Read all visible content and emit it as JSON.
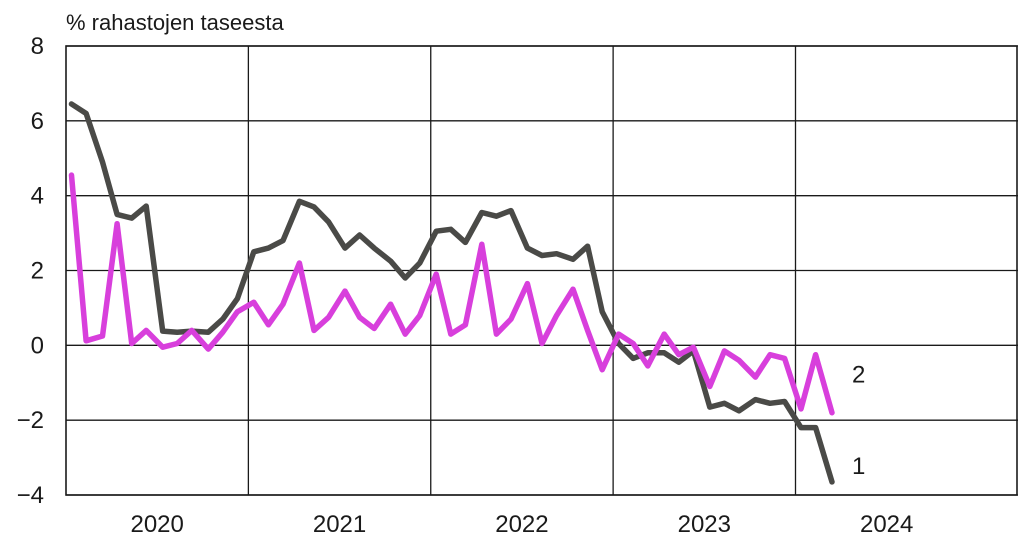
{
  "chart_data": {
    "type": "line",
    "unit_label": "% rahastojen taseesta",
    "ylim": [
      -4,
      8
    ],
    "yticks": [
      -4,
      -2,
      0,
      2,
      4,
      6,
      8
    ],
    "ytick_labels": [
      "−4",
      "−2",
      "0",
      "2",
      "4",
      "6",
      "8"
    ],
    "xlim": [
      2019.5,
      2024.72
    ],
    "year_boundaries": [
      2020.5,
      2021.5,
      2022.5,
      2023.5
    ],
    "xtick_labels": [
      {
        "label": "2020",
        "center": 2020.0
      },
      {
        "label": "2021",
        "center": 2021.0
      },
      {
        "label": "2022",
        "center": 2022.0
      },
      {
        "label": "2023",
        "center": 2023.0
      },
      {
        "label": "2024",
        "center": 2024.0
      }
    ],
    "grid": true,
    "series": [
      {
        "name": "1",
        "color": "#4a4a47",
        "points": [
          [
            2019.53,
            6.45
          ],
          [
            2019.61,
            6.2
          ],
          [
            2019.7,
            4.9
          ],
          [
            2019.78,
            3.5
          ],
          [
            2019.86,
            3.4
          ],
          [
            2019.94,
            3.72
          ],
          [
            2020.03,
            0.38
          ],
          [
            2020.11,
            0.35
          ],
          [
            2020.19,
            0.38
          ],
          [
            2020.28,
            0.35
          ],
          [
            2020.36,
            0.7
          ],
          [
            2020.44,
            1.25
          ],
          [
            2020.53,
            2.5
          ],
          [
            2020.61,
            2.6
          ],
          [
            2020.69,
            2.8
          ],
          [
            2020.78,
            3.85
          ],
          [
            2020.86,
            3.7
          ],
          [
            2020.94,
            3.3
          ],
          [
            2021.03,
            2.6
          ],
          [
            2021.11,
            2.95
          ],
          [
            2021.19,
            2.6
          ],
          [
            2021.28,
            2.25
          ],
          [
            2021.36,
            1.8
          ],
          [
            2021.44,
            2.2
          ],
          [
            2021.53,
            3.05
          ],
          [
            2021.61,
            3.1
          ],
          [
            2021.69,
            2.75
          ],
          [
            2021.78,
            3.55
          ],
          [
            2021.86,
            3.45
          ],
          [
            2021.94,
            3.6
          ],
          [
            2022.03,
            2.6
          ],
          [
            2022.11,
            2.4
          ],
          [
            2022.19,
            2.45
          ],
          [
            2022.28,
            2.3
          ],
          [
            2022.36,
            2.65
          ],
          [
            2022.44,
            0.9
          ],
          [
            2022.53,
            0.05
          ],
          [
            2022.61,
            -0.35
          ],
          [
            2022.69,
            -0.2
          ],
          [
            2022.78,
            -0.2
          ],
          [
            2022.86,
            -0.45
          ],
          [
            2022.94,
            -0.15
          ],
          [
            2023.03,
            -1.65
          ],
          [
            2023.11,
            -1.55
          ],
          [
            2023.19,
            -1.75
          ],
          [
            2023.28,
            -1.45
          ],
          [
            2023.36,
            -1.55
          ],
          [
            2023.44,
            -1.5
          ],
          [
            2023.53,
            -2.2
          ],
          [
            2023.61,
            -2.2
          ],
          [
            2023.7,
            -3.65
          ]
        ]
      },
      {
        "name": "2",
        "color": "#d83fdc",
        "points": [
          [
            2019.53,
            4.55
          ],
          [
            2019.61,
            0.12
          ],
          [
            2019.7,
            0.25
          ],
          [
            2019.78,
            3.25
          ],
          [
            2019.86,
            0.05
          ],
          [
            2019.94,
            0.4
          ],
          [
            2020.03,
            -0.05
          ],
          [
            2020.11,
            0.05
          ],
          [
            2020.19,
            0.4
          ],
          [
            2020.28,
            -0.1
          ],
          [
            2020.36,
            0.35
          ],
          [
            2020.44,
            0.9
          ],
          [
            2020.53,
            1.15
          ],
          [
            2020.61,
            0.55
          ],
          [
            2020.69,
            1.1
          ],
          [
            2020.78,
            2.2
          ],
          [
            2020.86,
            0.4
          ],
          [
            2020.94,
            0.75
          ],
          [
            2021.03,
            1.45
          ],
          [
            2021.11,
            0.75
          ],
          [
            2021.19,
            0.45
          ],
          [
            2021.28,
            1.1
          ],
          [
            2021.36,
            0.3
          ],
          [
            2021.44,
            0.8
          ],
          [
            2021.53,
            1.9
          ],
          [
            2021.61,
            0.3
          ],
          [
            2021.69,
            0.55
          ],
          [
            2021.78,
            2.7
          ],
          [
            2021.86,
            0.3
          ],
          [
            2021.94,
            0.7
          ],
          [
            2022.03,
            1.65
          ],
          [
            2022.11,
            0.05
          ],
          [
            2022.19,
            0.8
          ],
          [
            2022.28,
            1.5
          ],
          [
            2022.36,
            0.4
          ],
          [
            2022.44,
            -0.65
          ],
          [
            2022.53,
            0.3
          ],
          [
            2022.61,
            0.05
          ],
          [
            2022.69,
            -0.55
          ],
          [
            2022.78,
            0.3
          ],
          [
            2022.86,
            -0.25
          ],
          [
            2022.94,
            -0.05
          ],
          [
            2023.03,
            -1.1
          ],
          [
            2023.11,
            -0.15
          ],
          [
            2023.19,
            -0.4
          ],
          [
            2023.28,
            -0.85
          ],
          [
            2023.36,
            -0.25
          ],
          [
            2023.44,
            -0.35
          ],
          [
            2023.53,
            -1.7
          ],
          [
            2023.61,
            -0.25
          ],
          [
            2023.7,
            -1.8
          ]
        ]
      }
    ]
  }
}
